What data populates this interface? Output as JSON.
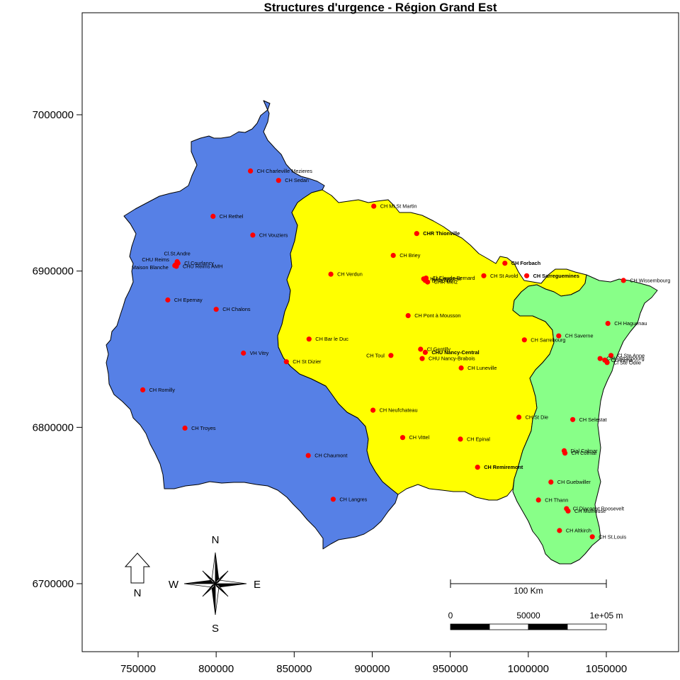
{
  "title": "Structures d'urgence - Région Grand Est",
  "colors": {
    "west_region": "#5680E6",
    "center_region": "#FFFF00",
    "east_region": "#88FF88",
    "site_marker": "#FF0000",
    "border": "#000000"
  },
  "axes": {
    "x_ticks": [
      {
        "value": 750000,
        "label": "750000"
      },
      {
        "value": 800000,
        "label": "800000"
      },
      {
        "value": 850000,
        "label": "850000"
      },
      {
        "value": 900000,
        "label": "900000"
      },
      {
        "value": 950000,
        "label": "950000"
      },
      {
        "value": 1000000,
        "label": "1000000"
      },
      {
        "value": 1050000,
        "label": "1050000"
      }
    ],
    "y_ticks": [
      {
        "value": 6700000,
        "label": "6700000"
      },
      {
        "value": 6800000,
        "label": "6800000"
      },
      {
        "value": 6900000,
        "label": "6900000"
      },
      {
        "value": 7000000,
        "label": "7000000"
      }
    ]
  },
  "sites": [
    {
      "name": "CH Charleville Mezieres",
      "x": 822000,
      "y": 6964000
    },
    {
      "name": "CH Sedan",
      "x": 840000,
      "y": 6958000
    },
    {
      "name": "CH Rethel",
      "x": 798000,
      "y": 6935000
    },
    {
      "name": "CH Vouziers",
      "x": 823500,
      "y": 6923000
    },
    {
      "name": "Cl.St.Andre",
      "x": 775000,
      "y": 6906000
    },
    {
      "name": "CHU Reims",
      "x": 774000,
      "y": 6904000
    },
    {
      "name": "Cl Courlancy",
      "x": 775500,
      "y": 6905000
    },
    {
      "name": "CHU Reims AMH",
      "x": 774500,
      "y": 6903000
    },
    {
      "name": "Maison Blanche",
      "x": 773500,
      "y": 6903500
    },
    {
      "name": "CH Epernay",
      "x": 769000,
      "y": 6881500
    },
    {
      "name": "CH Chalons",
      "x": 800000,
      "y": 6875500
    },
    {
      "name": "VH Vitry",
      "x": 817500,
      "y": 6847500
    },
    {
      "name": "CH St Dizier",
      "x": 845000,
      "y": 6842000
    },
    {
      "name": "CH Romilly",
      "x": 753000,
      "y": 6824000
    },
    {
      "name": "CH Troyes",
      "x": 780000,
      "y": 6799500
    },
    {
      "name": "CH Chaumont",
      "x": 859000,
      "y": 6782000
    },
    {
      "name": "CH Langres",
      "x": 875000,
      "y": 6754000
    },
    {
      "name": "CH Mt St Martin",
      "x": 901000,
      "y": 6941500
    },
    {
      "name": "CHR Thionville",
      "x": 928500,
      "y": 6924000
    },
    {
      "name": "CH Briey",
      "x": 913500,
      "y": 6910000
    },
    {
      "name": "CH Verdun",
      "x": 873500,
      "y": 6898000
    },
    {
      "name": "HIA Legouest",
      "x": 933000,
      "y": 6895000
    },
    {
      "name": "Cl Claude Bernard",
      "x": 934500,
      "y": 6895500
    },
    {
      "name": "CHR Metz",
      "x": 935500,
      "y": 6893000
    },
    {
      "name": "Belle Isle",
      "x": 934000,
      "y": 6894000
    },
    {
      "name": "CH St Avold",
      "x": 971500,
      "y": 6897000
    },
    {
      "name": "CH Forbach",
      "x": 985000,
      "y": 6905000
    },
    {
      "name": "CH Sarreguemines",
      "x": 999000,
      "y": 6897000
    },
    {
      "name": "CH Pont à Mousson",
      "x": 923000,
      "y": 6871500
    },
    {
      "name": "CH Bar le Duc",
      "x": 859500,
      "y": 6856500
    },
    {
      "name": "CH Sarrebourg",
      "x": 997500,
      "y": 6856000
    },
    {
      "name": "CH Toul",
      "x": 912000,
      "y": 6846000
    },
    {
      "name": "Cl Gentilly",
      "x": 931000,
      "y": 6850000
    },
    {
      "name": "CHU Nancy-Central",
      "x": 934000,
      "y": 6848000
    },
    {
      "name": "CHU Nancy-Brabois",
      "x": 932000,
      "y": 6844000
    },
    {
      "name": "CH Luneville",
      "x": 957000,
      "y": 6838000
    },
    {
      "name": "CH Neufchateau",
      "x": 900500,
      "y": 6811000
    },
    {
      "name": "CH Vittel",
      "x": 919500,
      "y": 6793500
    },
    {
      "name": "CH Epinal",
      "x": 956500,
      "y": 6792500
    },
    {
      "name": "CH St Die",
      "x": 994000,
      "y": 6806500
    },
    {
      "name": "CH Remiremont",
      "x": 967500,
      "y": 6774500
    },
    {
      "name": "CH Wissembourg",
      "x": 1061000,
      "y": 6894000
    },
    {
      "name": "CH Haguenau",
      "x": 1051000,
      "y": 6866500
    },
    {
      "name": "CH Saverne",
      "x": 1019500,
      "y": 6858500
    },
    {
      "name": "Cl Ste Anne",
      "x": 1053000,
      "y": 6846000
    },
    {
      "name": "CHU Strasbourg",
      "x": 1046000,
      "y": 6844000
    },
    {
      "name": "Cl Rhena",
      "x": 1049000,
      "y": 6843000
    },
    {
      "name": "Cl Ste Odile",
      "x": 1050500,
      "y": 6841500
    },
    {
      "name": "CH Selestat",
      "x": 1028500,
      "y": 6805000
    },
    {
      "name": "Dial Colmar",
      "x": 1023000,
      "y": 6785000
    },
    {
      "name": "CH Colmar",
      "x": 1023500,
      "y": 6783500
    },
    {
      "name": "CH Guebwiller",
      "x": 1014500,
      "y": 6765000
    },
    {
      "name": "CH Thann",
      "x": 1006500,
      "y": 6753500
    },
    {
      "name": "Cl Diaconat Roosevelt",
      "x": 1024500,
      "y": 6748000
    },
    {
      "name": "CH Mulhouse",
      "x": 1025500,
      "y": 6746500
    },
    {
      "name": "CH Altkirch",
      "x": 1020000,
      "y": 6734000
    },
    {
      "name": "CH St.Louis",
      "x": 1041000,
      "y": 6730000
    }
  ],
  "north_arrow": {
    "label": "N"
  },
  "compass": {
    "n": "N",
    "s": "S",
    "e": "E",
    "w": "W"
  },
  "scale_bar": {
    "label": "100 Km",
    "ticks": [
      "0",
      "50000",
      "1e+05 m"
    ]
  }
}
